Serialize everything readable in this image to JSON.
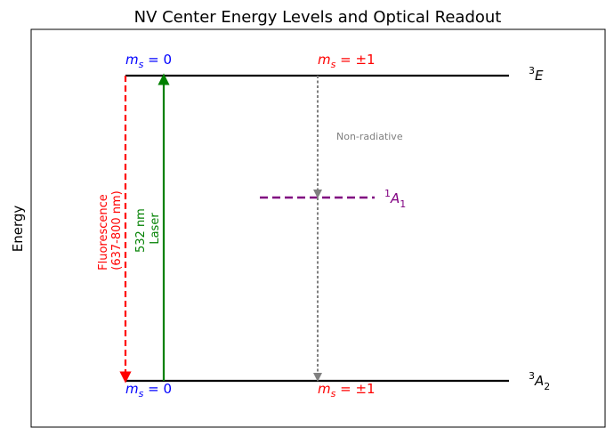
{
  "title": "NV Center Energy Levels and Optical Readout",
  "y_axis_label": "Energy",
  "colors": {
    "level_line": "#000000",
    "ms0": "#0000ff",
    "ms_pm1": "#ff0000",
    "laser": "#008000",
    "fluorescence": "#ff0000",
    "nonradiative": "#808080",
    "singlet": "#800080"
  },
  "levels": {
    "excited": {
      "name": "3E",
      "ms0_label": "m_s = 0",
      "ms_pm1_label": "m_s = ±1"
    },
    "ground": {
      "name": "3A2",
      "ms0_label": "m_s = 0",
      "ms_pm1_label": "m_s = ±1"
    },
    "singlet": {
      "name": "1A1"
    }
  },
  "transitions": {
    "laser": {
      "line1": "532 nm",
      "line2": "Laser"
    },
    "fluorescence": {
      "line1": "Fluorescence",
      "line2": "(637-800 nm)"
    },
    "nonradiative": {
      "label": "Non-radiative"
    }
  }
}
